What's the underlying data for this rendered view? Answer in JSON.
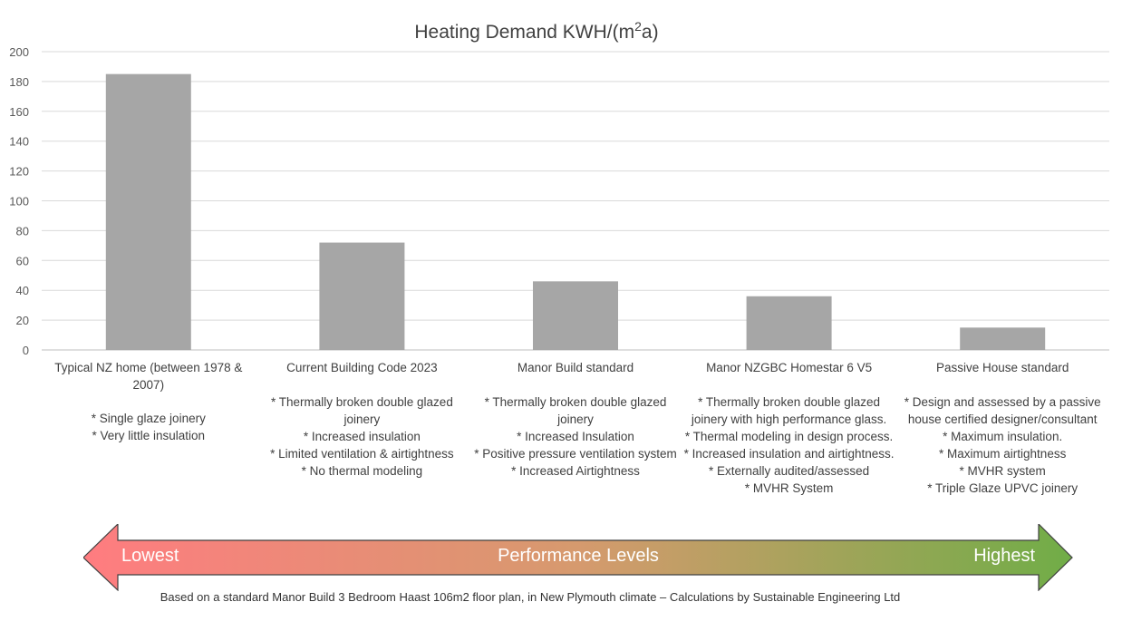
{
  "chart_data": {
    "type": "bar",
    "title": "Heating Demand KWH/(m²a)",
    "categories": [
      "Typical NZ home (between 1978 & 2007)",
      "Current Building Code 2023",
      "Manor Build standard",
      "Manor NZGBC Homestar 6 V5",
      "Passive House standard"
    ],
    "values": [
      185,
      72,
      46,
      36,
      15
    ],
    "ylim": [
      0,
      200
    ],
    "yticks": [
      "0",
      "20",
      "40",
      "60",
      "80",
      "100",
      "120",
      "140",
      "160",
      "180",
      "200"
    ],
    "grid": true,
    "bar_color": "#a6a6a6",
    "notes": [
      [
        "* Single glaze joinery",
        "* Very little insulation"
      ],
      [
        "* Thermally broken double glazed joinery",
        "* Increased insulation",
        "* Limited ventilation & airtightness",
        "* No thermal modeling"
      ],
      [
        "* Thermally broken double glazed joinery",
        "* Increased Insulation",
        "* Positive pressure ventilation system",
        "* Increased Airtightness"
      ],
      [
        "* Thermally broken double glazed joinery with high performance glass.",
        "* Thermal modeling in design process.",
        "* Increased insulation and airtightness.",
        "* Externally audited/assessed",
        "* MVHR System"
      ],
      [
        "* Design and assessed by a passive house certified designer/consultant",
        "* Maximum insulation.",
        "* Maximum airtightness",
        "* MVHR system",
        "* Triple Glaze UPVC joinery"
      ]
    ]
  },
  "arrow": {
    "low_label": "Lowest",
    "mid_label": "Performance Levels",
    "high_label": "Highest",
    "color_start": "#ff7c80",
    "color_mid": "#d69a6e",
    "color_end": "#70ad47"
  },
  "footnote": "Based on a standard Manor Build 3 Bedroom Haast 106m2 floor plan, in New Plymouth  climate – Calculations by Sustainable Engineering Ltd"
}
